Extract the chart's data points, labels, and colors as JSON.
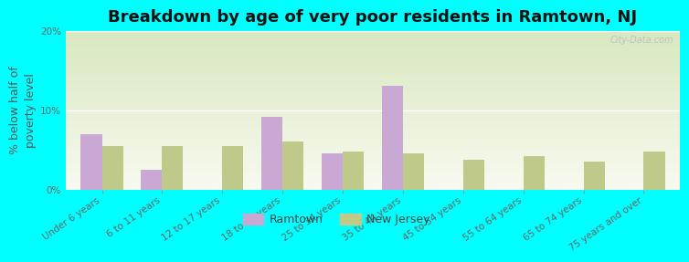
{
  "title": "Breakdown by age of very poor residents in Ramtown, NJ",
  "ylabel": "% below half of\npoverty level",
  "categories": [
    "Under 6 years",
    "6 to 11 years",
    "12 to 17 years",
    "18 to 24 years",
    "25 to 34 years",
    "35 to 44 years",
    "45 to 54 years",
    "55 to 64 years",
    "65 to 74 years",
    "75 years and over"
  ],
  "ramtown_values": [
    7.0,
    2.5,
    0.0,
    9.2,
    4.5,
    13.0,
    0.0,
    0.0,
    0.0,
    0.0
  ],
  "nj_values": [
    5.5,
    5.5,
    5.5,
    6.0,
    4.8,
    4.5,
    3.8,
    4.2,
    3.5,
    4.8
  ],
  "ramtown_color": "#c9a8d4",
  "nj_color": "#bec98a",
  "background_color": "#00ffff",
  "plot_bg_top": "#d8e8c0",
  "plot_bg_bottom": "#f8faf0",
  "ylim": [
    0,
    20
  ],
  "yticks": [
    0,
    10,
    20
  ],
  "ytick_labels": [
    "0%",
    "10%",
    "20%"
  ],
  "bar_width": 0.35,
  "title_fontsize": 13,
  "axis_label_fontsize": 9,
  "tick_fontsize": 7.5,
  "legend_fontsize": 9,
  "watermark": "City-Data.com"
}
